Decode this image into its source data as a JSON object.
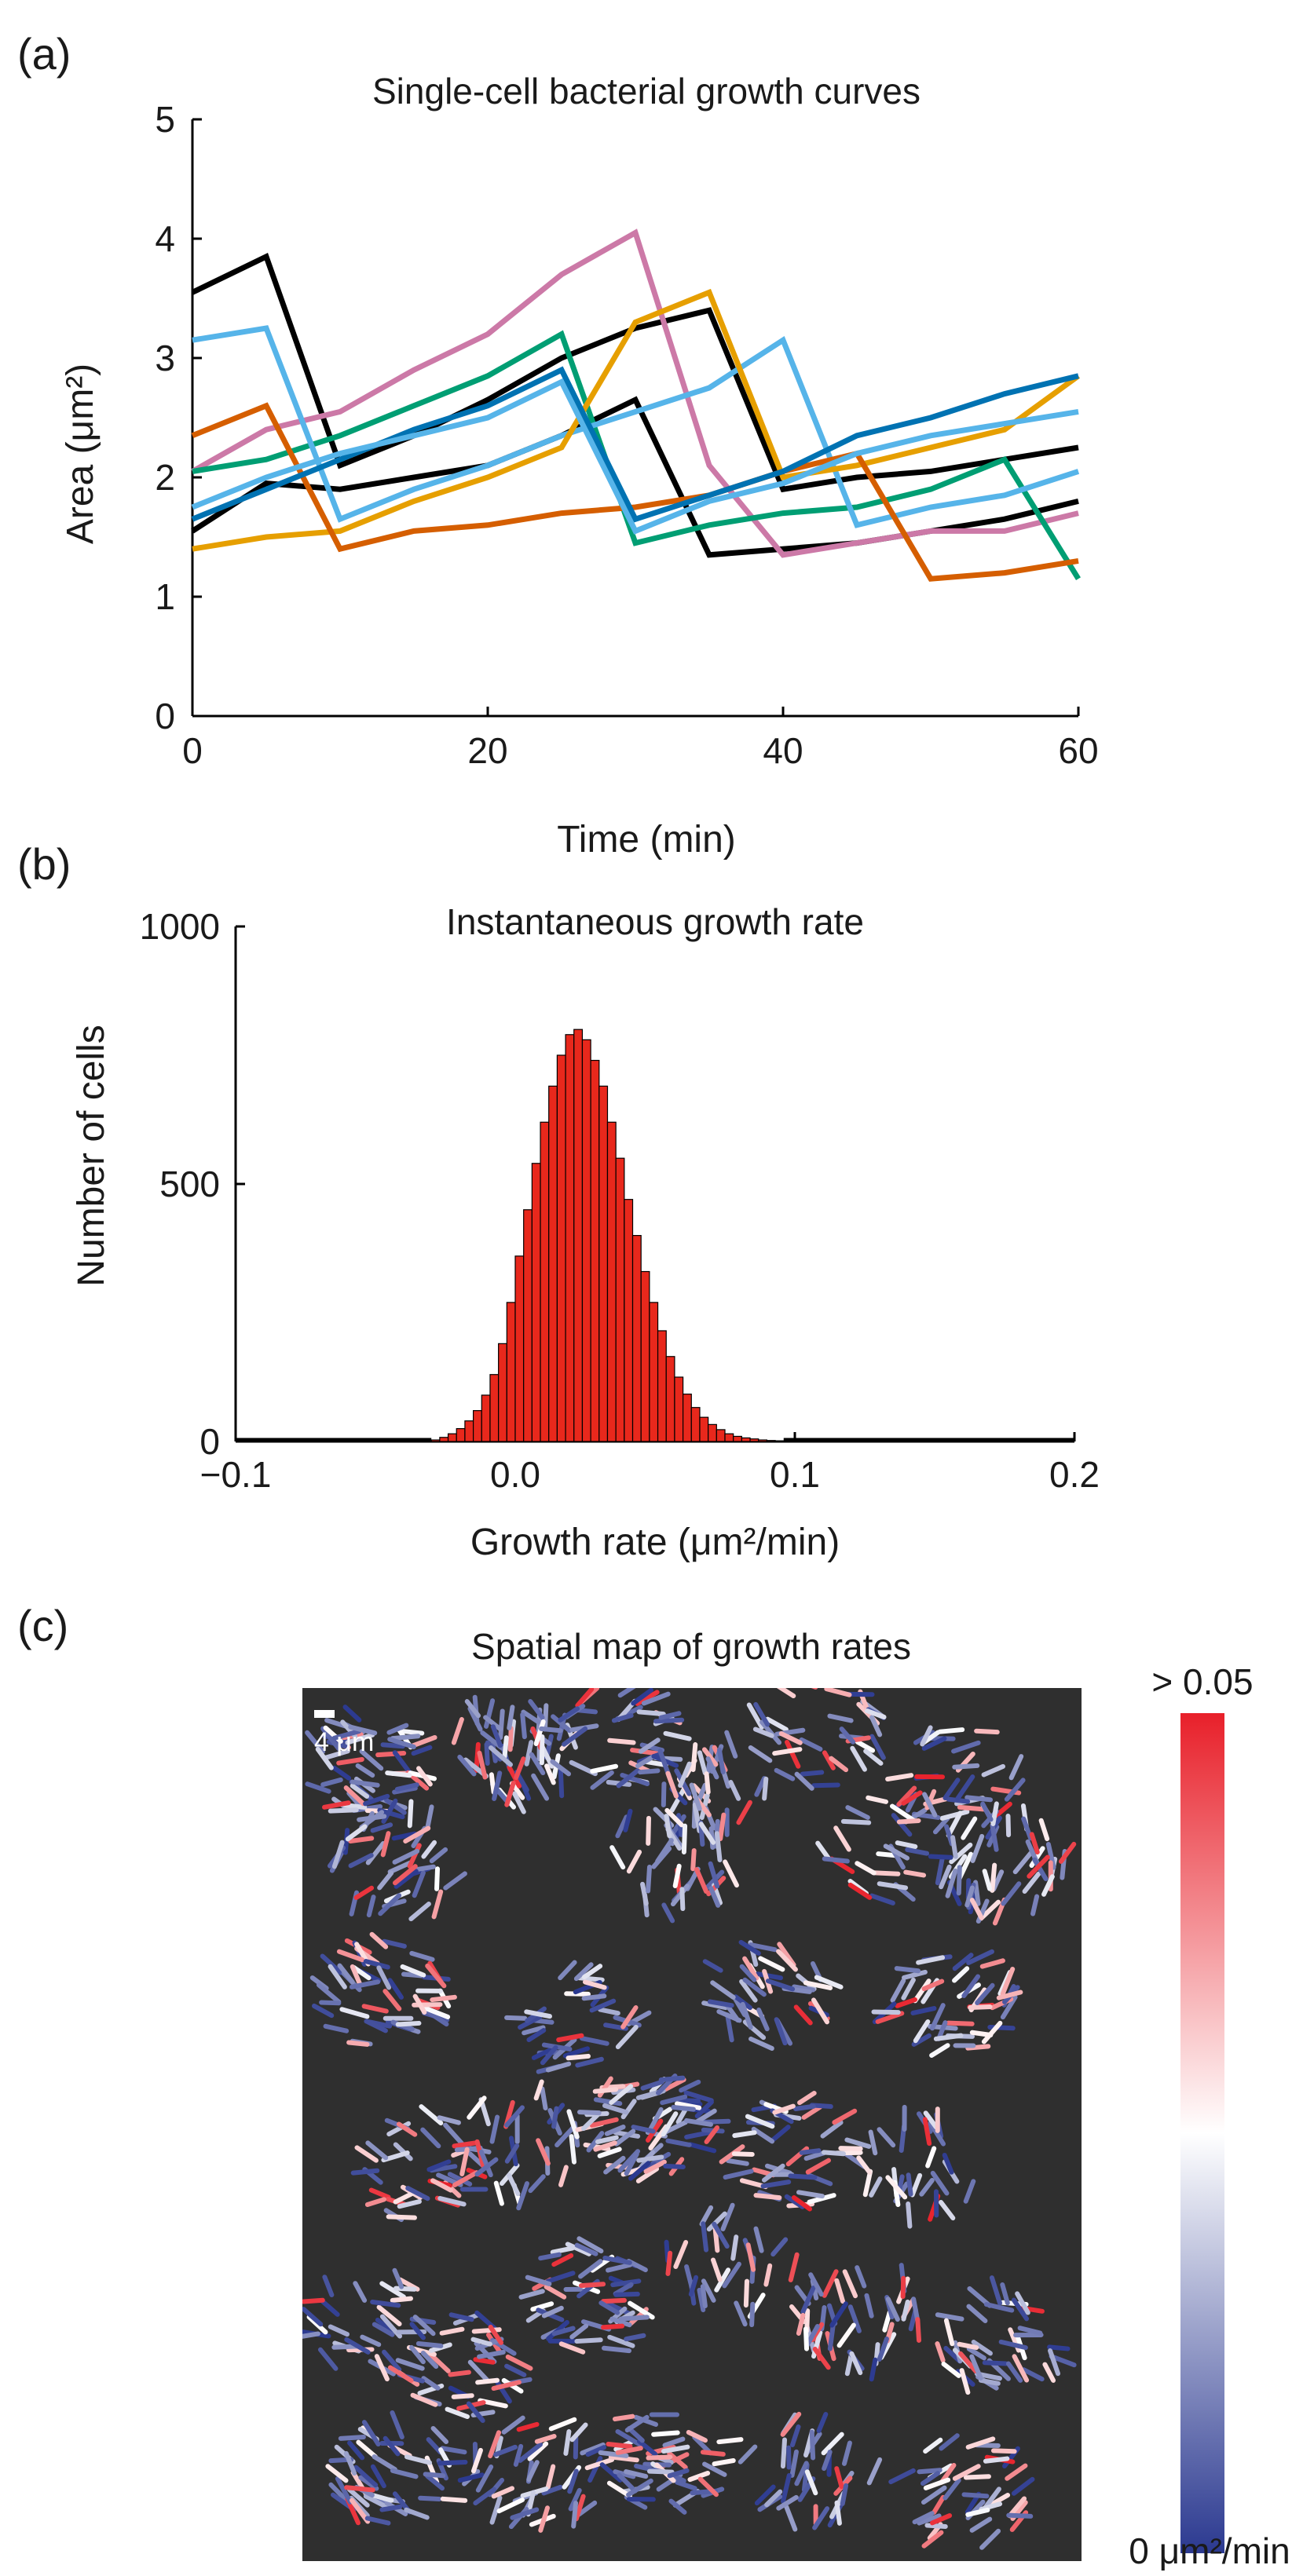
{
  "panels": {
    "a": {
      "label": "(a)"
    },
    "b": {
      "label": "(b)"
    },
    "c": {
      "label": "(c)"
    }
  },
  "chart_data": [
    {
      "id": "a",
      "type": "line",
      "title": "Single-cell bacterial growth curves",
      "xlabel": "Time (min)",
      "ylabel": "Area (μm²)",
      "xlim": [
        0,
        60
      ],
      "ylim": [
        0,
        5
      ],
      "xticks": [
        0,
        20,
        40,
        60
      ],
      "xtick_labels": [
        "0",
        "20",
        "40",
        "60"
      ],
      "yticks": [
        0,
        1,
        2,
        3,
        4,
        5
      ],
      "ytick_labels": [
        "0",
        "1",
        "2",
        "3",
        "4",
        "5"
      ],
      "x": [
        0,
        5,
        10,
        15,
        20,
        25,
        30,
        35,
        40,
        45,
        50,
        55,
        60
      ],
      "series": [
        {
          "name": "black-1",
          "color": "#000000",
          "values": [
            3.55,
            3.85,
            2.1,
            2.35,
            2.65,
            3.0,
            3.25,
            3.4,
            1.9,
            2.0,
            2.05,
            2.15,
            2.25
          ]
        },
        {
          "name": "black-2",
          "color": "#000000",
          "values": [
            1.55,
            1.95,
            1.9,
            2.0,
            2.1,
            2.35,
            2.65,
            1.35,
            1.4,
            1.45,
            1.55,
            1.65,
            1.8
          ]
        },
        {
          "name": "pink",
          "color": "#cc79a7",
          "values": [
            2.05,
            2.4,
            2.55,
            2.9,
            3.2,
            3.7,
            4.05,
            2.1,
            1.35,
            1.45,
            1.55,
            1.55,
            1.7
          ]
        },
        {
          "name": "green",
          "color": "#009e73",
          "values": [
            2.05,
            2.15,
            2.35,
            2.6,
            2.85,
            3.2,
            1.45,
            1.6,
            1.7,
            1.75,
            1.9,
            2.15,
            1.15
          ]
        },
        {
          "name": "light-blue",
          "color": "#56b4e9",
          "values": [
            3.15,
            3.25,
            1.65,
            1.9,
            2.1,
            2.35,
            2.55,
            2.75,
            3.15,
            1.6,
            1.75,
            1.85,
            2.05
          ]
        },
        {
          "name": "orange",
          "color": "#e69f00",
          "values": [
            1.4,
            1.5,
            1.55,
            1.8,
            2.0,
            2.25,
            3.3,
            3.55,
            2.0,
            2.1,
            2.25,
            2.4,
            2.85
          ]
        },
        {
          "name": "vermilion",
          "color": "#d55e00",
          "values": [
            2.35,
            2.6,
            1.4,
            1.55,
            1.6,
            1.7,
            1.75,
            1.85,
            2.05,
            2.2,
            1.15,
            1.2,
            1.3
          ]
        },
        {
          "name": "blue",
          "color": "#0072b2",
          "values": [
            1.65,
            1.9,
            2.15,
            2.4,
            2.6,
            2.9,
            1.65,
            1.85,
            2.05,
            2.35,
            2.5,
            2.7,
            2.85
          ]
        },
        {
          "name": "sky-2",
          "color": "#56b4e9",
          "values": [
            1.75,
            2.0,
            2.2,
            2.35,
            2.5,
            2.8,
            1.55,
            1.8,
            1.95,
            2.2,
            2.35,
            2.45,
            2.55
          ]
        }
      ]
    },
    {
      "id": "b",
      "type": "bar",
      "title": "Instantaneous growth rate",
      "xlabel": "Growth rate (μm²/min)",
      "ylabel": "Number of cells",
      "xlim": [
        -0.1,
        0.2
      ],
      "ylim": [
        0,
        1000
      ],
      "xticks": [
        -0.1,
        0.0,
        0.1,
        0.2
      ],
      "xtick_labels": [
        "−0.1",
        "0.0",
        "0.1",
        "0.2"
      ],
      "yticks": [
        0,
        500,
        1000
      ],
      "ytick_labels": [
        "0",
        "500",
        "1000"
      ],
      "bar_color": "#e8281c",
      "bin_width": 0.003,
      "bin_starts": [
        -0.03,
        -0.027,
        -0.024,
        -0.021,
        -0.018,
        -0.015,
        -0.012,
        -0.009,
        -0.006,
        -0.003,
        0.0,
        0.003,
        0.006,
        0.009,
        0.012,
        0.015,
        0.018,
        0.021,
        0.024,
        0.027,
        0.03,
        0.033,
        0.036,
        0.039,
        0.042,
        0.045,
        0.048,
        0.051,
        0.054,
        0.057,
        0.06,
        0.063,
        0.066,
        0.069,
        0.072,
        0.075,
        0.078,
        0.081,
        0.084,
        0.087,
        0.09,
        0.093
      ],
      "values": [
        3,
        8,
        15,
        25,
        40,
        60,
        90,
        130,
        190,
        270,
        360,
        450,
        540,
        620,
        690,
        750,
        790,
        800,
        780,
        740,
        690,
        620,
        550,
        470,
        400,
        330,
        270,
        215,
        165,
        125,
        92,
        66,
        47,
        33,
        23,
        15,
        10,
        7,
        5,
        3,
        2,
        1
      ]
    },
    {
      "id": "c",
      "type": "heatmap",
      "title": "Spatial map of growth rates",
      "scalebar_label": "4 μm",
      "colorbar_max_label": "> 0.05",
      "colorbar_min_label": "0 μm²/min",
      "colorbar_low_color": "#2b3990",
      "colorbar_mid_color": "#ffffff",
      "colorbar_high_color": "#e8202a",
      "background_color": "#2f2f2f",
      "colonies": [
        {
          "u": 0.08,
          "v": 0.09,
          "n": 55
        },
        {
          "u": 0.27,
          "v": 0.07,
          "n": 55
        },
        {
          "u": 0.4,
          "v": 0.05,
          "n": 40
        },
        {
          "u": 0.52,
          "v": 0.12,
          "n": 45
        },
        {
          "u": 0.66,
          "v": 0.05,
          "n": 35
        },
        {
          "u": 0.84,
          "v": 0.1,
          "n": 35
        },
        {
          "u": 0.12,
          "v": 0.2,
          "n": 40
        },
        {
          "u": 0.47,
          "v": 0.2,
          "n": 30
        },
        {
          "u": 0.9,
          "v": 0.2,
          "n": 50
        },
        {
          "u": 0.75,
          "v": 0.18,
          "n": 25
        },
        {
          "u": 0.1,
          "v": 0.35,
          "n": 50
        },
        {
          "u": 0.35,
          "v": 0.38,
          "n": 35
        },
        {
          "u": 0.6,
          "v": 0.35,
          "n": 40
        },
        {
          "u": 0.83,
          "v": 0.36,
          "n": 45
        },
        {
          "u": 0.15,
          "v": 0.55,
          "n": 40
        },
        {
          "u": 0.28,
          "v": 0.52,
          "n": 30
        },
        {
          "u": 0.45,
          "v": 0.5,
          "n": 70
        },
        {
          "u": 0.63,
          "v": 0.53,
          "n": 45
        },
        {
          "u": 0.8,
          "v": 0.55,
          "n": 30
        },
        {
          "u": 0.08,
          "v": 0.72,
          "n": 30
        },
        {
          "u": 0.2,
          "v": 0.78,
          "n": 45
        },
        {
          "u": 0.37,
          "v": 0.7,
          "n": 50
        },
        {
          "u": 0.55,
          "v": 0.66,
          "n": 30
        },
        {
          "u": 0.72,
          "v": 0.72,
          "n": 45
        },
        {
          "u": 0.9,
          "v": 0.75,
          "n": 40
        },
        {
          "u": 0.12,
          "v": 0.9,
          "n": 50
        },
        {
          "u": 0.3,
          "v": 0.9,
          "n": 45
        },
        {
          "u": 0.47,
          "v": 0.88,
          "n": 50
        },
        {
          "u": 0.65,
          "v": 0.9,
          "n": 35
        },
        {
          "u": 0.85,
          "v": 0.92,
          "n": 40
        }
      ]
    }
  ]
}
